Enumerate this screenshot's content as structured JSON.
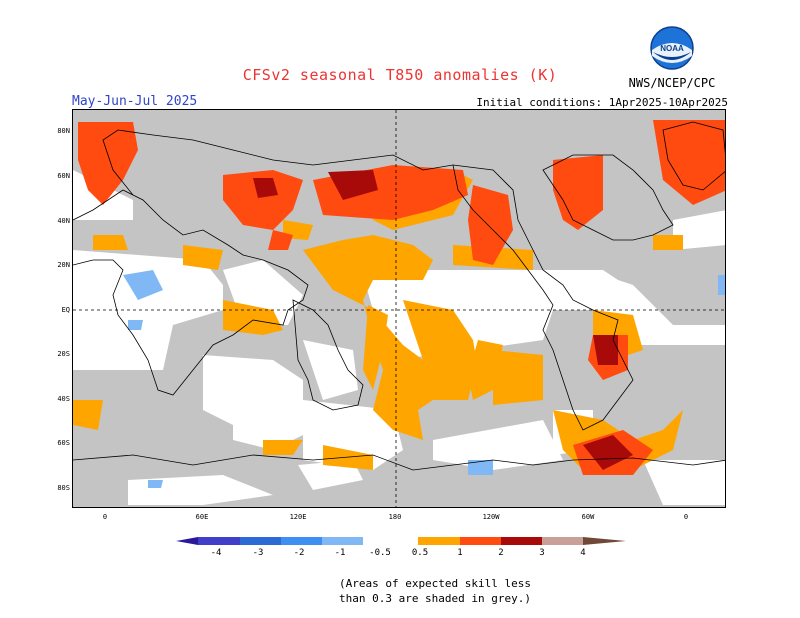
{
  "title": "CFSv2 seasonal T850 anomalies (K)",
  "season": "May-Jun-Jul 2025",
  "initial_conditions": "Initial conditions: 1Apr2025-10Apr2025",
  "agency": "NWS/NCEP/CPC",
  "logo_text": "NOAA",
  "lat_labels": [
    "80N",
    "60N",
    "40N",
    "20N",
    "EQ",
    "20S",
    "40S",
    "60S",
    "80S"
  ],
  "lon_labels": [
    "0",
    "60E",
    "120E",
    "180",
    "120W",
    "60W",
    "0"
  ],
  "colorbar": {
    "ticks": [
      "-4",
      "-3",
      "-2",
      "-1",
      "-0.5",
      "0.5",
      "1",
      "2",
      "3",
      "4"
    ],
    "colors": [
      "#2a1a9a",
      "#3f3fc8",
      "#2c6ad6",
      "#3f8ef2",
      "#7fb8f4",
      "#ffffff",
      "#ffa500",
      "#ff4a10",
      "#a80a0a",
      "#c8a098",
      "#704838"
    ]
  },
  "skill_note": {
    "line1": "(Areas of expected skill less",
    "line2": "than 0.3 are shaded in grey.)"
  },
  "colors": {
    "grey": "#c4c4c4",
    "orange": "#ffa500",
    "red": "#ff4a10",
    "darkred": "#a80a0a",
    "blue": "#7fb8f4"
  }
}
